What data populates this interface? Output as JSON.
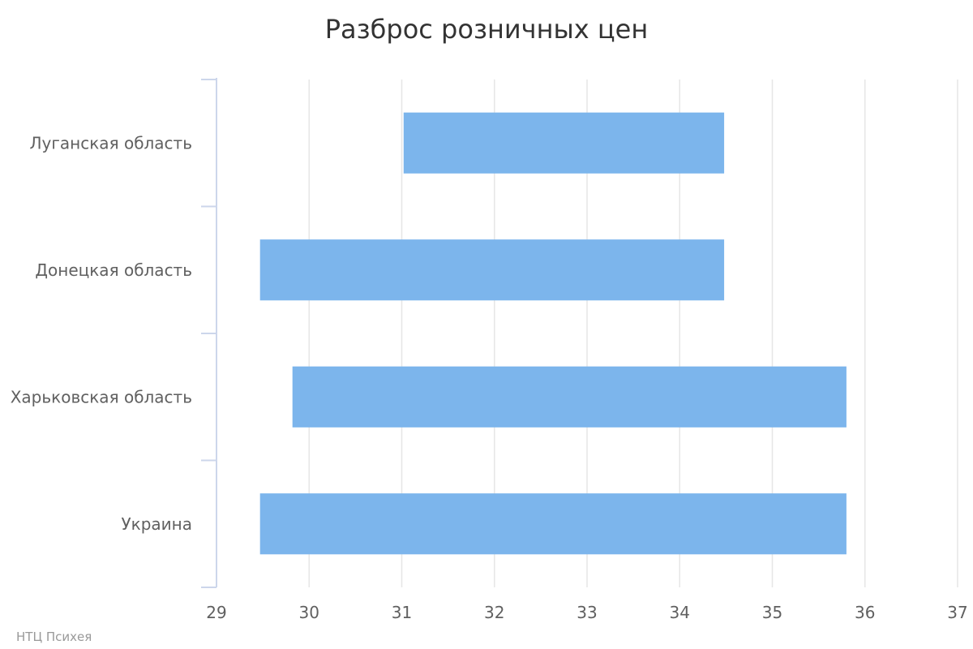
{
  "chart_data": {
    "type": "bar",
    "orientation": "horizontal",
    "title": "Разброс розничных цен",
    "xlabel": "",
    "ylabel": "",
    "categories": [
      "Луганская область",
      "Донецкая область",
      "Харьковская область",
      "Украина"
    ],
    "series": [
      {
        "ranges": [
          [
            31.02,
            34.48
          ],
          [
            29.47,
            34.48
          ],
          [
            29.82,
            35.8
          ],
          [
            29.47,
            35.8
          ]
        ]
      }
    ],
    "xlim": [
      29,
      37
    ],
    "xticks": [
      "29",
      "30",
      "31",
      "32",
      "33",
      "34",
      "35",
      "36",
      "37"
    ],
    "grid": true,
    "legend": "none",
    "bar_color": "#7cb5ec",
    "grid_color": "#e6e6e6",
    "axis_color": "#ccd6eb",
    "credit": "НТЦ Психея"
  }
}
